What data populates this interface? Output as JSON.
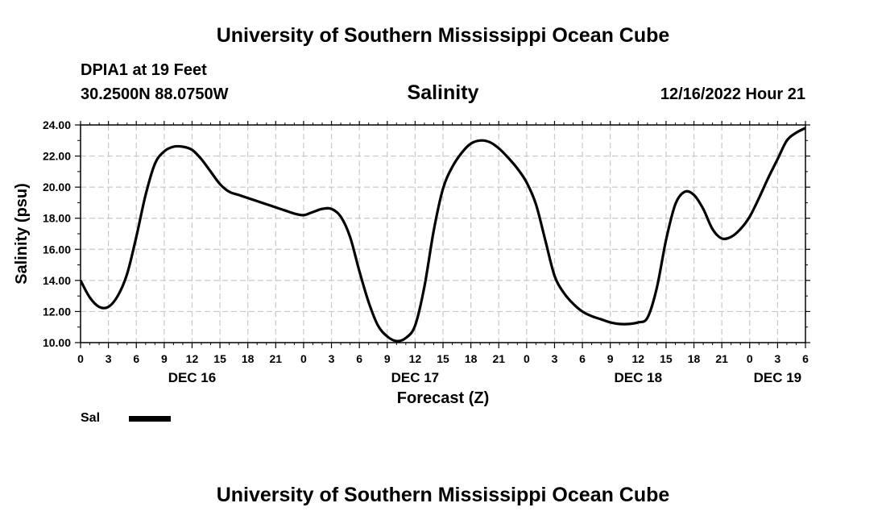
{
  "header": {
    "title": "University of Southern Mississippi Ocean Cube",
    "station": "DPIA1 at 19 Feet",
    "coordinates": "30.2500N  88.0750W",
    "variable": "Salinity",
    "datetime": "12/16/2022 Hour 21"
  },
  "footer": {
    "title": "University of Southern Mississippi Ocean Cube"
  },
  "chart_data": {
    "type": "line",
    "title": "Salinity",
    "xlabel": "Forecast (Z)",
    "ylabel": "Salinity (psu)",
    "ylim": [
      10,
      24
    ],
    "xlim": [
      0,
      78
    ],
    "yticks": [
      "10.00",
      "12.00",
      "14.00",
      "16.00",
      "18.00",
      "20.00",
      "22.00",
      "24.00"
    ],
    "xtick_labels": [
      "0",
      "3",
      "6",
      "9",
      "12",
      "15",
      "18",
      "21",
      "0",
      "3",
      "6",
      "9",
      "12",
      "15",
      "18",
      "21",
      "0",
      "3",
      "6",
      "9",
      "12",
      "15",
      "18",
      "21",
      "0",
      "3",
      "6"
    ],
    "day_labels": [
      {
        "label": "DEC 16",
        "hour": 12
      },
      {
        "label": "DEC 17",
        "hour": 36
      },
      {
        "label": "DEC 18",
        "hour": 60
      },
      {
        "label": "DEC 19",
        "hour": 75
      }
    ],
    "grid": true,
    "legend": [
      {
        "label": "Sal",
        "color": "#000000"
      }
    ],
    "series": [
      {
        "name": "Sal",
        "color": "#000000",
        "x": [
          0,
          1,
          2,
          3,
          4,
          5,
          6,
          7,
          8,
          9,
          10,
          11,
          12,
          13,
          14,
          15,
          16,
          17,
          18,
          19,
          20,
          21,
          22,
          23,
          24,
          25,
          26,
          27,
          28,
          29,
          30,
          31,
          32,
          33,
          34,
          35,
          36,
          37,
          38,
          39,
          40,
          41,
          42,
          43,
          44,
          45,
          46,
          47,
          48,
          49,
          50,
          51,
          52,
          53,
          54,
          55,
          56,
          57,
          58,
          59,
          60,
          61,
          62,
          63,
          64,
          65,
          66,
          67,
          68,
          69,
          70,
          71,
          72,
          73,
          74,
          75,
          76,
          77,
          78
        ],
        "values": [
          14.0,
          12.9,
          12.3,
          12.3,
          13.0,
          14.4,
          16.8,
          19.5,
          21.5,
          22.3,
          22.6,
          22.6,
          22.4,
          21.8,
          21.0,
          20.2,
          19.7,
          19.5,
          19.3,
          19.1,
          18.9,
          18.7,
          18.5,
          18.3,
          18.2,
          18.4,
          18.6,
          18.6,
          18.1,
          16.8,
          14.6,
          12.6,
          11.1,
          10.4,
          10.1,
          10.3,
          11.1,
          13.6,
          17.2,
          19.9,
          21.3,
          22.2,
          22.8,
          23.0,
          22.9,
          22.5,
          21.9,
          21.2,
          20.3,
          18.9,
          16.6,
          14.3,
          13.2,
          12.5,
          12.0,
          11.7,
          11.5,
          11.3,
          11.2,
          11.2,
          11.3,
          11.6,
          13.5,
          16.6,
          18.9,
          19.7,
          19.5,
          18.6,
          17.3,
          16.7,
          16.8,
          17.3,
          18.1,
          19.3,
          20.6,
          21.8,
          23.0,
          23.5,
          23.8
        ]
      }
    ]
  }
}
